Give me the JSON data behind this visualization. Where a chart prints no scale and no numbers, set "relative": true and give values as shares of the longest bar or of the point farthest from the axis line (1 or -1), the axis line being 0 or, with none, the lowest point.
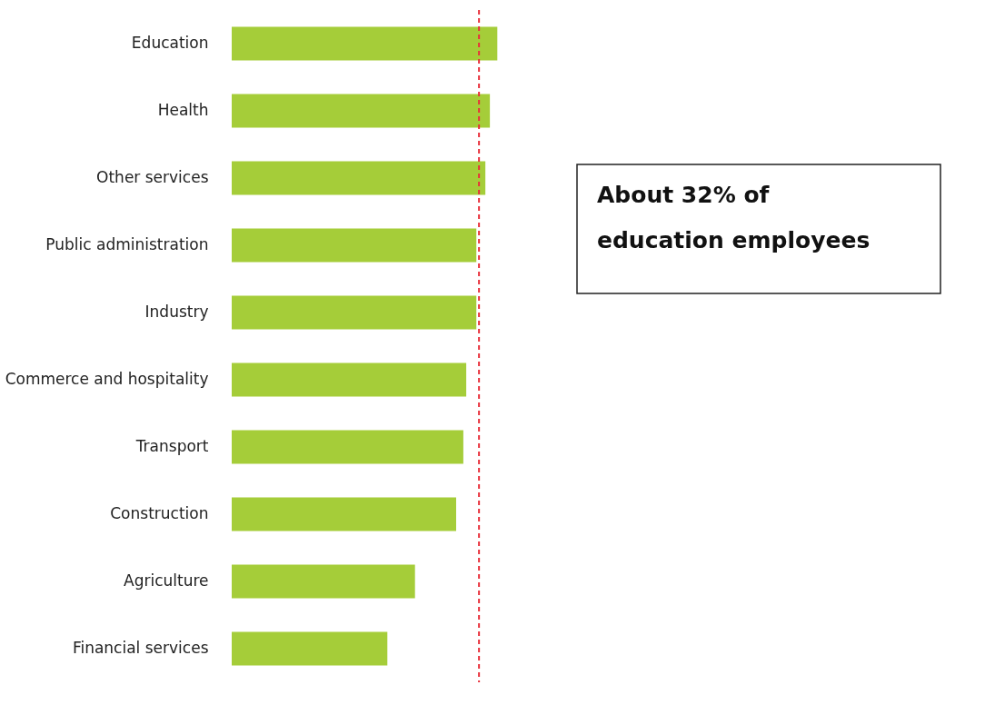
{
  "chart_data": {
    "type": "bar",
    "orientation": "horizontal",
    "relative": true,
    "categories": [
      "Education",
      "Health",
      "Other services",
      "Public administration",
      "Industry",
      "Commerce and hospitality",
      "Transport",
      "Construction",
      "Agriculture",
      "Financial services"
    ],
    "values": [
      1,
      0.972,
      0.955,
      0.921,
      0.921,
      0.883,
      0.872,
      0.845,
      0.69,
      0.586
    ],
    "color": "#a5cd39",
    "ref_lines": [
      {
        "axis": "x",
        "value": 0.931,
        "color": "#e8303a",
        "line_style": "dashed"
      }
    ],
    "annotations": [
      "About 32% of education employees"
    ]
  }
}
